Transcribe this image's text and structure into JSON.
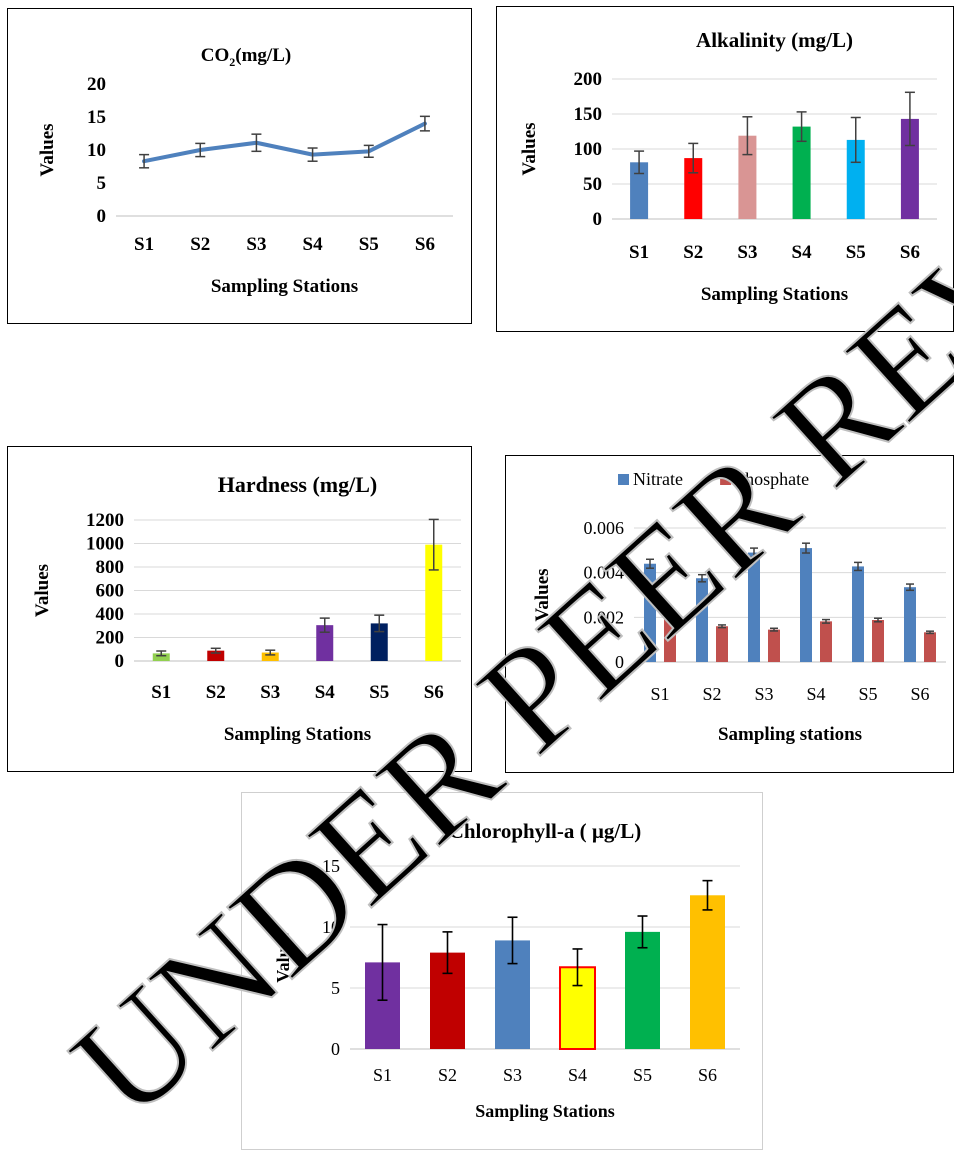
{
  "charts": [
    {
      "id": "co2",
      "type": "line",
      "title": "CO",
      "title_sub": "2",
      "title_suffix": "(mg/L)",
      "xlabel": "Sampling Stations",
      "ylabel": "Values",
      "categories": [
        "S1",
        "S2",
        "S3",
        "S4",
        "S5",
        "S6"
      ],
      "ylim": [
        0,
        20
      ],
      "yticks": [
        0,
        5,
        10,
        15,
        20
      ],
      "series": [
        {
          "values": [
            8.3,
            10,
            11.1,
            9.3,
            9.8,
            14
          ],
          "errors": [
            1,
            1,
            1.3,
            1,
            0.9,
            1.1
          ],
          "color": "#4f81bd"
        }
      ],
      "grid": false
    },
    {
      "id": "alkalinity",
      "type": "bar",
      "title": "Alkalinity (mg/L)",
      "xlabel": "Sampling Stations",
      "ylabel": "Values",
      "categories": [
        "S1",
        "S2",
        "S3",
        "S4",
        "S5",
        "S6"
      ],
      "ylim": [
        0,
        200
      ],
      "yticks": [
        0,
        50,
        100,
        150,
        200
      ],
      "series": [
        {
          "values": [
            81,
            87,
            119,
            132,
            113,
            143
          ],
          "errors": [
            16,
            21,
            27,
            21,
            32,
            38
          ],
          "colors": [
            "#4f81bd",
            "#ff0000",
            "#d99594",
            "#00b050",
            "#00b0f0",
            "#7030a0"
          ]
        }
      ],
      "grid": true
    },
    {
      "id": "hardness",
      "type": "bar",
      "title": "Hardness (mg/L)",
      "xlabel": "Sampling Stations",
      "ylabel": "Values",
      "categories": [
        "S1",
        "S2",
        "S3",
        "S4",
        "S5",
        "S6"
      ],
      "ylim": [
        0,
        1200
      ],
      "yticks": [
        0,
        200,
        400,
        600,
        800,
        1000,
        1200
      ],
      "series": [
        {
          "values": [
            65,
            88,
            72,
            305,
            320,
            990
          ],
          "errors": [
            20,
            20,
            20,
            60,
            70,
            215
          ],
          "colors": [
            "#92d050",
            "#c00000",
            "#ffc000",
            "#7030a0",
            "#002060",
            "#ffff00"
          ]
        }
      ],
      "grid": true
    },
    {
      "id": "nutrients",
      "type": "bar",
      "title": "",
      "xlabel": "Sampling stations",
      "ylabel": "Values",
      "categories": [
        "S1",
        "S2",
        "S3",
        "S4",
        "S5",
        "S6"
      ],
      "ylim": [
        0,
        0.006
      ],
      "yticks": [
        0,
        0.002,
        0.004,
        0.006
      ],
      "ytick_labels": [
        "0",
        "0.002",
        "0.004",
        "0.006"
      ],
      "legend": "top-left",
      "series": [
        {
          "name": "Nitrate",
          "values": [
            0.0044,
            0.00375,
            0.0049,
            0.0051,
            0.00428,
            0.00335
          ],
          "errors": [
            0.0002,
            0.00016,
            0.0002,
            0.00022,
            0.00018,
            0.00014
          ],
          "color": "#4f81bd"
        },
        {
          "name": "Phosphate",
          "values": [
            0.00198,
            0.0016,
            0.00145,
            0.00182,
            0.00188,
            0.00133
          ],
          "errors": [
            0.0001,
            6e-05,
            6e-05,
            8e-05,
            8e-05,
            5e-05
          ],
          "color": "#c0504d"
        }
      ],
      "grid": true
    },
    {
      "id": "chlorophyll",
      "type": "bar",
      "title": "Chlorophyll-a ( µg/L)",
      "xlabel": "Sampling Stations",
      "ylabel": "Values",
      "categories": [
        "S1",
        "S2",
        "S3",
        "S4",
        "S5",
        "S6"
      ],
      "ylim": [
        0,
        15
      ],
      "yticks": [
        0,
        5,
        10,
        15
      ],
      "series": [
        {
          "values": [
            7.1,
            7.9,
            8.9,
            6.7,
            9.6,
            12.6
          ],
          "errors": [
            3.1,
            1.7,
            1.9,
            1.5,
            1.3,
            1.2
          ],
          "colors": [
            "#7030a0",
            "#c00000",
            "#4f81bd",
            "#ffff00",
            "#00b050",
            "#ffc000"
          ],
          "outline": [
            "",
            "",
            "",
            "#ff0000",
            "",
            ""
          ]
        }
      ],
      "grid": true
    }
  ],
  "watermark": {
    "text": "UNDER PEER REVIEW",
    "color": "#bfbfbf"
  }
}
